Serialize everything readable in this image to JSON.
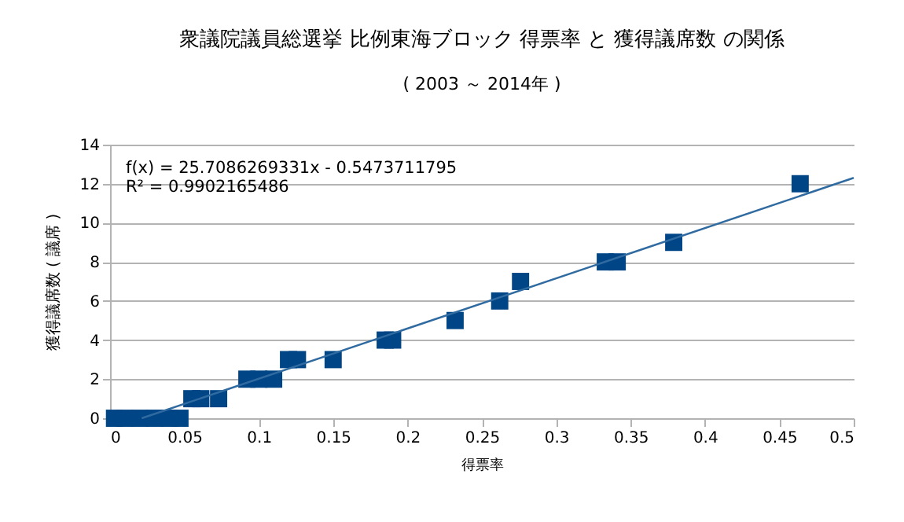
{
  "chart_data": {
    "type": "scatter",
    "title": "衆議院議員総選挙 比例東海ブロック  得票率 と 獲得議席数 の関係",
    "subtitle": "( 2003 ～  2014年  )",
    "xlabel": "得票率",
    "ylabel": "獲得議席数 ( 議席 )",
    "annotations": [
      "f(x) = 25.7086269331x - 0.5473711795",
      "R² = 0.9902165486"
    ],
    "series": [
      {
        "color": "#004586",
        "marker": "square",
        "x": [
          0.003,
          0.01,
          0.02,
          0.03,
          0.04,
          0.047,
          0.055,
          0.061,
          0.073,
          0.092,
          0.1,
          0.11,
          0.12,
          0.126,
          0.15,
          0.185,
          0.19,
          0.232,
          0.262,
          0.276,
          0.333,
          0.341,
          0.379,
          0.464
        ],
        "values": [
          0,
          0,
          0,
          0,
          0,
          0,
          1,
          1,
          1,
          2,
          2,
          2,
          3,
          3,
          3,
          4,
          4,
          5,
          6,
          7,
          8,
          8,
          9,
          12
        ]
      },
      {
        "type": "line",
        "color": "#2f6aa0",
        "x": [
          0.0213,
          0.5
        ],
        "values": [
          0,
          12.3
        ]
      }
    ],
    "xlim": [
      0,
      0.5
    ],
    "ylim": [
      0,
      14
    ],
    "xticks": [
      0,
      0.05,
      0.1,
      0.15,
      0.2,
      0.25,
      0.3,
      0.35,
      0.4,
      0.45,
      0.5
    ],
    "yticks": [
      0,
      2,
      4,
      6,
      8,
      10,
      12,
      14
    ],
    "grid": "y"
  }
}
